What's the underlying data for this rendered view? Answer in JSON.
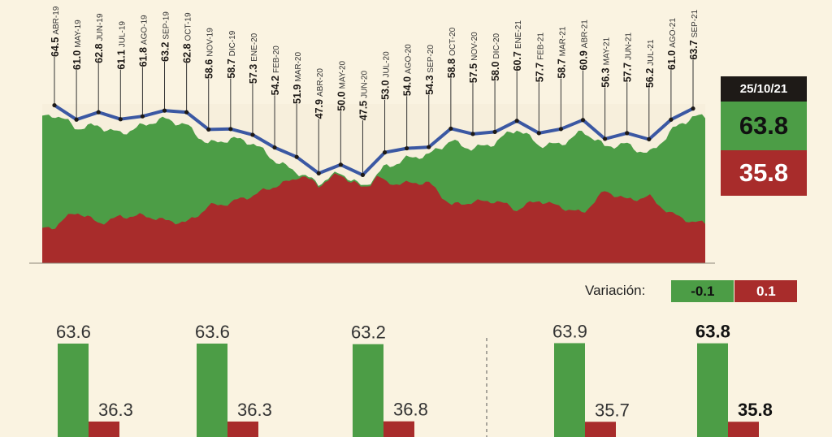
{
  "chart_data": {
    "type": "line",
    "line_color": "#3b58a3",
    "area_colors": {
      "approve": "#4c9d46",
      "disapprove": "#a82c2b"
    },
    "ylim": [
      45,
      66
    ],
    "points": [
      {
        "value": "64.5",
        "date": "ABR-19",
        "v": 64.5
      },
      {
        "value": "61.0",
        "date": "MAY-19",
        "v": 61.0
      },
      {
        "value": "62.8",
        "date": "JUN-19",
        "v": 62.8
      },
      {
        "value": "61.1",
        "date": "JUL-19",
        "v": 61.1
      },
      {
        "value": "61.8",
        "date": "AGO-19",
        "v": 61.8
      },
      {
        "value": "63.2",
        "date": "SEP-19",
        "v": 63.2
      },
      {
        "value": "62.8",
        "date": "OCT-19",
        "v": 62.8
      },
      {
        "value": "58.6",
        "date": "NOV-19",
        "v": 58.6
      },
      {
        "value": "58.7",
        "date": "DIC-19",
        "v": 58.7
      },
      {
        "value": "57.3",
        "date": "ENE-20",
        "v": 57.3
      },
      {
        "value": "54.2",
        "date": "FEB-20",
        "v": 54.2
      },
      {
        "value": "51.9",
        "date": "MAR-20",
        "v": 51.9
      },
      {
        "value": "47.9",
        "date": "ABR-20",
        "v": 47.9
      },
      {
        "value": "50.0",
        "date": "MAY-20",
        "v": 50.0
      },
      {
        "value": "47.5",
        "date": "JUN-20",
        "v": 47.5
      },
      {
        "value": "53.0",
        "date": "JUL-20",
        "v": 53.0
      },
      {
        "value": "54.0",
        "date": "AGO-20",
        "v": 54.0
      },
      {
        "value": "54.3",
        "date": "SEP-20",
        "v": 54.3
      },
      {
        "value": "58.8",
        "date": "OCT-20",
        "v": 58.8
      },
      {
        "value": "57.5",
        "date": "NOV-20",
        "v": 57.5
      },
      {
        "value": "58.0",
        "date": "DIC-20",
        "v": 58.0
      },
      {
        "value": "60.7",
        "date": "ENE-21",
        "v": 60.7
      },
      {
        "value": "57.7",
        "date": "FEB-21",
        "v": 57.7
      },
      {
        "value": "58.7",
        "date": "MAR-21",
        "v": 58.7
      },
      {
        "value": "60.9",
        "date": "ABR-21",
        "v": 60.9
      },
      {
        "value": "56.3",
        "date": "MAY-21",
        "v": 56.3
      },
      {
        "value": "57.7",
        "date": "JUN-21",
        "v": 57.7
      },
      {
        "value": "56.2",
        "date": "JUL-21",
        "v": 56.2
      },
      {
        "value": "61.0",
        "date": "AGO-21",
        "v": 61.0
      },
      {
        "value": "63.7",
        "date": "SEP-21",
        "v": 63.7
      }
    ],
    "bars": [
      {
        "approve": 63.6,
        "disapprove": 36.3,
        "approve_label": "63.6",
        "disapprove_label": "36.3",
        "bold": false
      },
      {
        "approve": 63.6,
        "disapprove": 36.3,
        "approve_label": "63.6",
        "disapprove_label": "36.3",
        "bold": false
      },
      {
        "approve": 63.2,
        "disapprove": 36.8,
        "approve_label": "63.2",
        "disapprove_label": "36.8",
        "bold": false
      },
      {
        "approve": 63.9,
        "disapprove": 35.7,
        "approve_label": "63.9",
        "disapprove_label": "35.7",
        "bold": false
      },
      {
        "approve": 63.8,
        "disapprove": 35.8,
        "approve_label": "63.8",
        "disapprove_label": "35.8",
        "bold": true
      }
    ]
  },
  "current": {
    "date": "25/10/21",
    "approve": "63.8",
    "disapprove": "35.8"
  },
  "variation": {
    "label": "Variación:",
    "approve": "-0.1",
    "disapprove": "0.1"
  }
}
